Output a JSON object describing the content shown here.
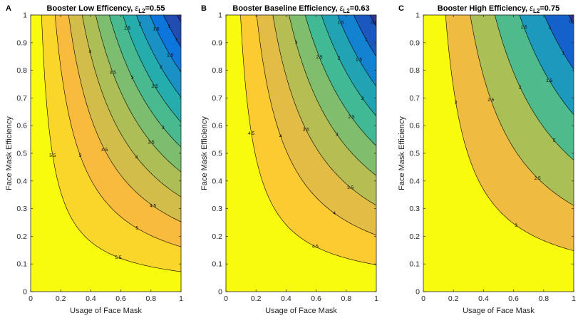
{
  "chart_data": [
    {
      "type": "contour",
      "panel_letter": "A",
      "title_prefix": "Booster Low Efficency, ",
      "title_symbol": "ε",
      "title_subscript": "L2",
      "title_value": "=0.55",
      "xlabel": "Usage of Face Mask",
      "ylabel": "Face Mask Efficiency",
      "xlim": [
        0,
        1
      ],
      "ylim": [
        0,
        1
      ],
      "xticks": [
        "0",
        "0.2",
        "0.4",
        "0.6",
        "0.8",
        "1"
      ],
      "yticks": [
        "0",
        "0.1",
        "0.2",
        "0.3",
        "0.4",
        "0.5",
        "0.6",
        "0.7",
        "0.8",
        "0.9",
        "1"
      ],
      "z_at_origin": 5.9,
      "z_at_full": 0.35,
      "contour_levels": [
        5.5,
        5,
        4.5,
        4,
        3.5,
        3,
        2.5,
        2,
        1.5,
        1,
        0.5
      ],
      "contour_labels": [
        "5.5",
        "5",
        "4.5",
        "4",
        "3.5",
        "3",
        "2.5",
        "2",
        "1.5",
        "1",
        "0.5"
      ]
    },
    {
      "type": "contour",
      "panel_letter": "B",
      "title_prefix": "Booster Baseline Efficiency, ",
      "title_symbol": "ε",
      "title_subscript": "L2",
      "title_value": "=0.63",
      "xlabel": "Usage of Face Mask",
      "ylabel": "Face Mask Efficiency",
      "xlim": [
        0,
        1
      ],
      "ylim": [
        0,
        1
      ],
      "xticks": [
        "0",
        "0.2",
        "0.4",
        "0.6",
        "0.8",
        "1"
      ],
      "yticks": [
        "0",
        "0.1",
        "0.2",
        "0.3",
        "0.4",
        "0.5",
        "0.6",
        "0.7",
        "0.8",
        "0.9",
        "1"
      ],
      "z_at_origin": 4.95,
      "z_at_full": 0.3,
      "contour_levels": [
        4.5,
        4,
        3.5,
        3,
        2.5,
        2,
        1.5,
        1,
        0.5
      ],
      "contour_labels": [
        "4.5",
        "4",
        "3.5",
        "3",
        "2.5",
        "2",
        "1.5",
        "1",
        "0.5"
      ]
    },
    {
      "type": "contour",
      "panel_letter": "C",
      "title_prefix": "Booster High Efficiency, ",
      "title_symbol": "ε",
      "title_subscript": "L2",
      "title_value": "=0.75",
      "xlabel": "Usage of Face Mask",
      "ylabel": "Face Mask Efficiency",
      "xlim": [
        0,
        1
      ],
      "ylim": [
        0,
        1
      ],
      "xticks": [
        "0",
        "0.2",
        "0.4",
        "0.6",
        "0.8",
        "1"
      ],
      "yticks": [
        "0",
        "0.1",
        "0.2",
        "0.3",
        "0.4",
        "0.5",
        "0.6",
        "0.7",
        "0.8",
        "0.9",
        "1"
      ],
      "z_at_origin": 3.45,
      "z_at_full": 0.4,
      "contour_levels": [
        3,
        2.5,
        2,
        1.5,
        1,
        0.5
      ],
      "contour_labels": [
        "3",
        "2.5",
        "2",
        "1.5",
        "1",
        "0.5"
      ]
    }
  ],
  "colors": {
    "low": "#f9fb0e",
    "mid_low": "#fbbb3d",
    "mid": "#9fbf5a",
    "mid_high": "#2ab7a2",
    "high": "#0b72e0",
    "top": "#352a87",
    "contour_line": "#000000"
  }
}
